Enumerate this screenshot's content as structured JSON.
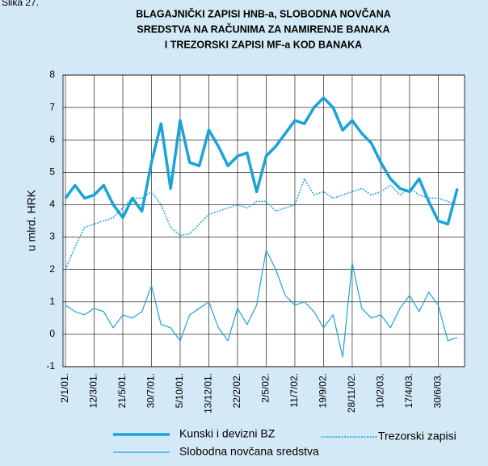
{
  "chart_data": {
    "type": "line",
    "label": "Slika 27.",
    "title": [
      "BLAGAJNIČKI ZAPISI HNB-a, SLOBODNA NOVČANA",
      "SREDSTVA NA RAČUNIMA ZA NAMIRENJE BANAKA",
      "I TREZORSKI ZAPISI MF-a KOD BANAKA"
    ],
    "y_label": "u mlrd. HRK",
    "categories": [
      "2/1/01.",
      null,
      null,
      "12/3/01.",
      null,
      null,
      "21/5/01.",
      null,
      null,
      "30/7/01.",
      null,
      null,
      "5/10/01.",
      null,
      null,
      "13/12/01.",
      null,
      null,
      "22/2/02.",
      null,
      null,
      "2/5/02.",
      null,
      null,
      "11/7/02.",
      null,
      null,
      "19/9/02.",
      null,
      null,
      "28/11/02.",
      null,
      null,
      "10/2/03.",
      null,
      null,
      "17/4/03.",
      null,
      null,
      "30/6/03.",
      null,
      null
    ],
    "series": [
      {
        "name": "Kunski i devizni BZ",
        "color": "#1aa3d9",
        "width": 3.5,
        "dash": "solid",
        "values": [
          4.2,
          4.6,
          4.2,
          4.3,
          4.6,
          4.0,
          3.6,
          4.2,
          3.8,
          5.3,
          6.5,
          4.5,
          6.6,
          5.3,
          5.2,
          6.3,
          5.8,
          5.2,
          5.5,
          5.6,
          4.4,
          5.5,
          5.8,
          6.2,
          6.6,
          6.5,
          7.0,
          7.3,
          7.0,
          6.3,
          6.6,
          6.2,
          5.9,
          5.3,
          4.8,
          4.5,
          4.4,
          4.8,
          4.1,
          3.5,
          3.4,
          4.5
        ]
      },
      {
        "name": "Trezorski zapisi",
        "color": "#1aa3d9",
        "width": 1.5,
        "dash": "dotted",
        "values": [
          2.0,
          2.7,
          3.3,
          3.4,
          3.5,
          3.6,
          3.9,
          4.2,
          4.2,
          4.4,
          4.0,
          3.3,
          3.05,
          3.1,
          3.4,
          3.7,
          3.8,
          3.9,
          4.0,
          3.9,
          4.1,
          4.1,
          3.8,
          3.9,
          4.0,
          4.8,
          4.3,
          4.4,
          4.2,
          4.3,
          4.4,
          4.5,
          4.3,
          4.4,
          4.6,
          4.3,
          4.5,
          4.3,
          4.2,
          4.2,
          4.1,
          4.0
        ]
      },
      {
        "name": "Slobodna novčana sredstva",
        "color": "#1aa3d9",
        "width": 1.2,
        "dash": "solid",
        "values": [
          0.9,
          0.7,
          0.6,
          0.8,
          0.7,
          0.2,
          0.6,
          0.5,
          0.7,
          1.5,
          0.3,
          0.2,
          -0.2,
          0.6,
          0.8,
          1.0,
          0.2,
          -0.2,
          0.8,
          0.3,
          0.9,
          2.6,
          2.0,
          1.2,
          0.9,
          1.0,
          0.7,
          0.2,
          0.6,
          -0.7,
          2.2,
          0.8,
          0.5,
          0.6,
          0.2,
          0.8,
          1.2,
          0.7,
          1.3,
          0.9,
          -0.2,
          -0.1
        ]
      }
    ],
    "ylim": [
      -1,
      8
    ],
    "yticks": [
      -1,
      0,
      1,
      2,
      3,
      4,
      5,
      6,
      7,
      8
    ],
    "grid": true
  }
}
